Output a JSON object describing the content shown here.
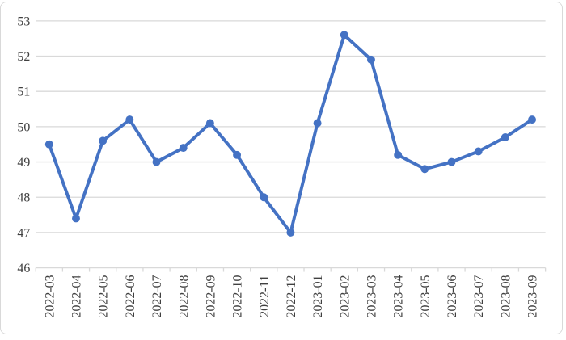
{
  "chart_data": {
    "type": "line",
    "title": "",
    "xlabel": "",
    "ylabel": "",
    "categories": [
      "2022-03",
      "2022-04",
      "2022-05",
      "2022-06",
      "2022-07",
      "2022-08",
      "2022-09",
      "2022-10",
      "2022-11",
      "2022-12",
      "2023-01",
      "2023-02",
      "2023-03",
      "2023-04",
      "2023-05",
      "2023-06",
      "2023-07",
      "2023-08",
      "2023-09"
    ],
    "values": [
      49.5,
      47.4,
      49.6,
      50.2,
      49.0,
      49.4,
      50.1,
      49.2,
      48.0,
      47.0,
      50.1,
      52.6,
      51.9,
      49.2,
      48.8,
      49.0,
      49.3,
      49.7,
      50.2
    ],
    "ylim": [
      46,
      53
    ],
    "yticks": [
      46,
      47,
      48,
      49,
      50,
      51,
      52,
      53
    ],
    "grid": true,
    "legend": false,
    "x_label_rotation": 90,
    "marker": "circle",
    "colors": {
      "line": "#4472C4",
      "marker": "#4472C4",
      "gridline": "#D9D9D9",
      "axis": "#D9D9D9",
      "tick_label": "#404040",
      "card_border": "#D9D9D9",
      "background": "#FFFFFF"
    }
  }
}
